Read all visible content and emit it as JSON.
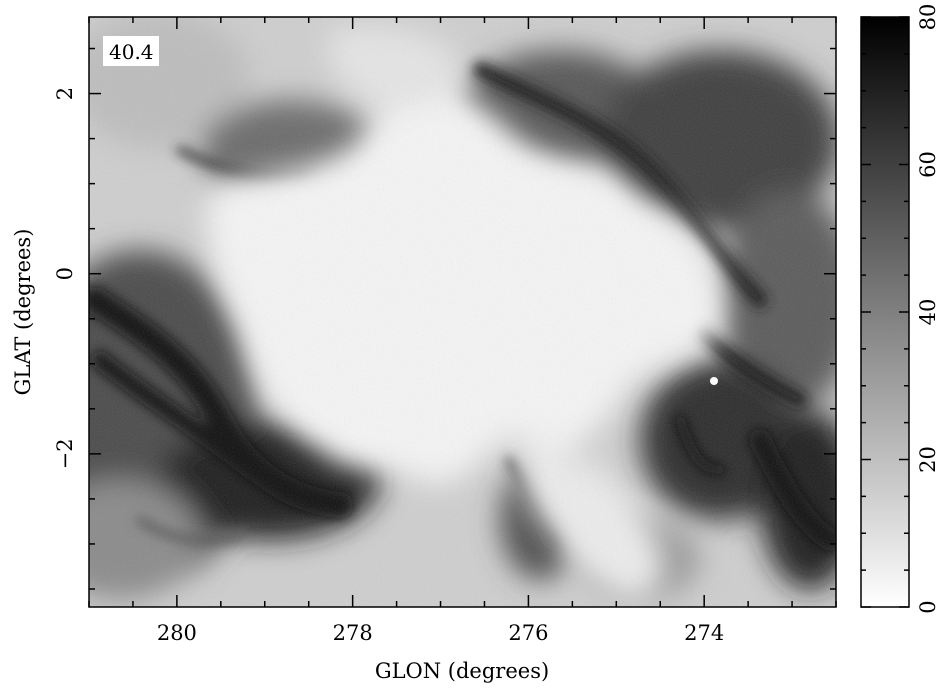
{
  "chart_data": {
    "type": "heatmap",
    "panel_label": "40.4",
    "xlabel": "GLON (degrees)",
    "ylabel": "GLAT (degrees)",
    "x_axis": {
      "lim": [
        281.0,
        272.5
      ],
      "reversed": true,
      "ticks": [
        280,
        278,
        276,
        274
      ],
      "tick_labels": [
        "280",
        "278",
        "276",
        "274"
      ]
    },
    "y_axis": {
      "lim": [
        -3.7,
        2.85
      ],
      "ticks": [
        2,
        0,
        -2
      ],
      "tick_labels": [
        "2",
        "0",
        "−2"
      ]
    },
    "colorbar": {
      "lim": [
        0,
        80
      ],
      "ticks": [
        0,
        20,
        40,
        60,
        80
      ],
      "tick_labels": [
        "0",
        "20",
        "40",
        "60",
        "80"
      ],
      "colormap": "greyscale (white = 0, black = 80)",
      "low_color": "#ffffff",
      "high_color": "#000000"
    },
    "features": [
      {
        "description": "broad low-intensity (white) cavity",
        "glon_range": [
          279.8,
          274.8
        ],
        "glat_range": [
          -2.8,
          1.6
        ],
        "level": 5
      },
      {
        "description": "dense dark emission ridge, lower left",
        "glon": 278.8,
        "glat": -2.2,
        "level": 75
      },
      {
        "description": "dark filament, left edge",
        "glon": 280.6,
        "glat": -0.8,
        "level": 70
      },
      {
        "description": "dark filamentary emission, upper right",
        "glon": 274.5,
        "glat": 1.2,
        "level": 60
      },
      {
        "description": "dark knot, lower right",
        "glon": 273.2,
        "glat": -2.0,
        "level": 78
      },
      {
        "description": "bright compact point source",
        "glon": 274.0,
        "glat": -1.1,
        "level": 0
      },
      {
        "description": "grey mottled emission, top-left corner",
        "glon": 280.5,
        "glat": 2.0,
        "level": 35
      }
    ]
  }
}
